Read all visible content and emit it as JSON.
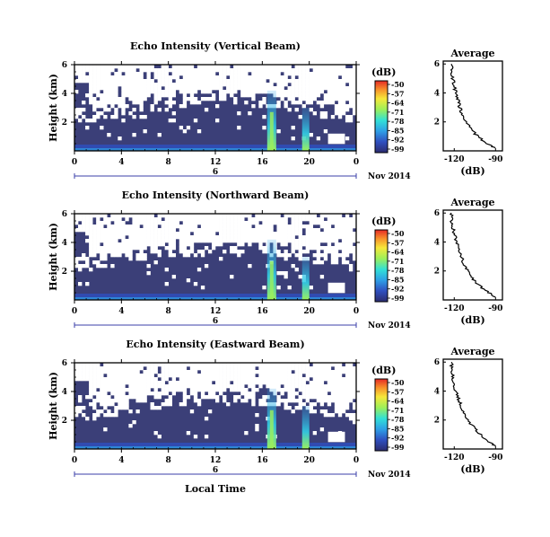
{
  "chart_data": [
    {
      "type": "heatmap",
      "title": "Echo Intensity (Vertical Beam)",
      "ylabel": "Height (km)",
      "yticks": [
        "6",
        "4",
        "2"
      ],
      "xticks": [
        "0",
        "4",
        "8",
        "12",
        "16",
        "20",
        "0"
      ],
      "date_marker": "6",
      "date_label": "Nov 2014",
      "colorbar_unit": "(dB)",
      "colorbar_ticks": [
        "-50",
        "-57",
        "-64",
        "-71",
        "-78",
        "-85",
        "-92",
        "-99"
      ],
      "average": {
        "title": "Average",
        "yticks": [
          "6",
          "4",
          "2"
        ],
        "xticks": [
          "-120",
          "-90"
        ],
        "xlabel": "(dB)",
        "profile": [
          [
            -90,
            0.2
          ],
          [
            -96,
            0.5
          ],
          [
            -103,
            1.0
          ],
          [
            -108,
            1.5
          ],
          [
            -111,
            2.0
          ],
          [
            -114,
            2.5
          ],
          [
            -116,
            3.0
          ],
          [
            -117,
            3.5
          ],
          [
            -119,
            4.0
          ],
          [
            -120,
            4.5
          ],
          [
            -121,
            5.0
          ],
          [
            -122,
            5.5
          ],
          [
            -122,
            6.0
          ]
        ]
      }
    },
    {
      "type": "heatmap",
      "title": "Echo Intensity (Northward Beam)",
      "ylabel": "Height (km)",
      "yticks": [
        "6",
        "4",
        "2"
      ],
      "xticks": [
        "0",
        "4",
        "8",
        "12",
        "16",
        "20",
        "0"
      ],
      "date_marker": "6",
      "date_label": "Nov 2014",
      "colorbar_unit": "(dB)",
      "colorbar_ticks": [
        "-50",
        "-57",
        "-64",
        "-71",
        "-78",
        "-85",
        "-92",
        "-99"
      ],
      "average": {
        "title": "Average",
        "yticks": [
          "6",
          "4",
          "2"
        ],
        "xticks": [
          "-120",
          "-90"
        ],
        "xlabel": "(dB)",
        "profile": [
          [
            -90,
            0.2
          ],
          [
            -95,
            0.5
          ],
          [
            -102,
            1.0
          ],
          [
            -107,
            1.5
          ],
          [
            -110,
            2.0
          ],
          [
            -113,
            2.5
          ],
          [
            -115,
            3.0
          ],
          [
            -117,
            3.5
          ],
          [
            -118,
            4.0
          ],
          [
            -120,
            4.5
          ],
          [
            -121,
            5.0
          ],
          [
            -122,
            5.5
          ],
          [
            -122,
            6.0
          ]
        ]
      }
    },
    {
      "type": "heatmap",
      "title": "Echo Intensity (Eastward Beam)",
      "ylabel": "Height (km)",
      "yticks": [
        "6",
        "4",
        "2"
      ],
      "xticks": [
        "0",
        "4",
        "8",
        "12",
        "16",
        "20",
        "0"
      ],
      "date_marker": "6",
      "date_label": "Nov 2014",
      "colorbar_unit": "(dB)",
      "colorbar_ticks": [
        "-50",
        "-57",
        "-64",
        "-71",
        "-78",
        "-85",
        "-92",
        "-99"
      ],
      "xlabel": "Local Time",
      "average": {
        "title": "Average",
        "yticks": [
          "6",
          "4",
          "2"
        ],
        "xticks": [
          "-120",
          "-90"
        ],
        "xlabel": "(dB)",
        "profile": [
          [
            -90,
            0.2
          ],
          [
            -95,
            0.5
          ],
          [
            -101,
            1.0
          ],
          [
            -106,
            1.5
          ],
          [
            -110,
            2.0
          ],
          [
            -113,
            2.5
          ],
          [
            -115,
            3.0
          ],
          [
            -117,
            3.5
          ],
          [
            -119,
            4.0
          ],
          [
            -120,
            4.5
          ],
          [
            -121,
            5.0
          ],
          [
            -122,
            5.5
          ],
          [
            -122,
            6.0
          ]
        ]
      }
    }
  ]
}
